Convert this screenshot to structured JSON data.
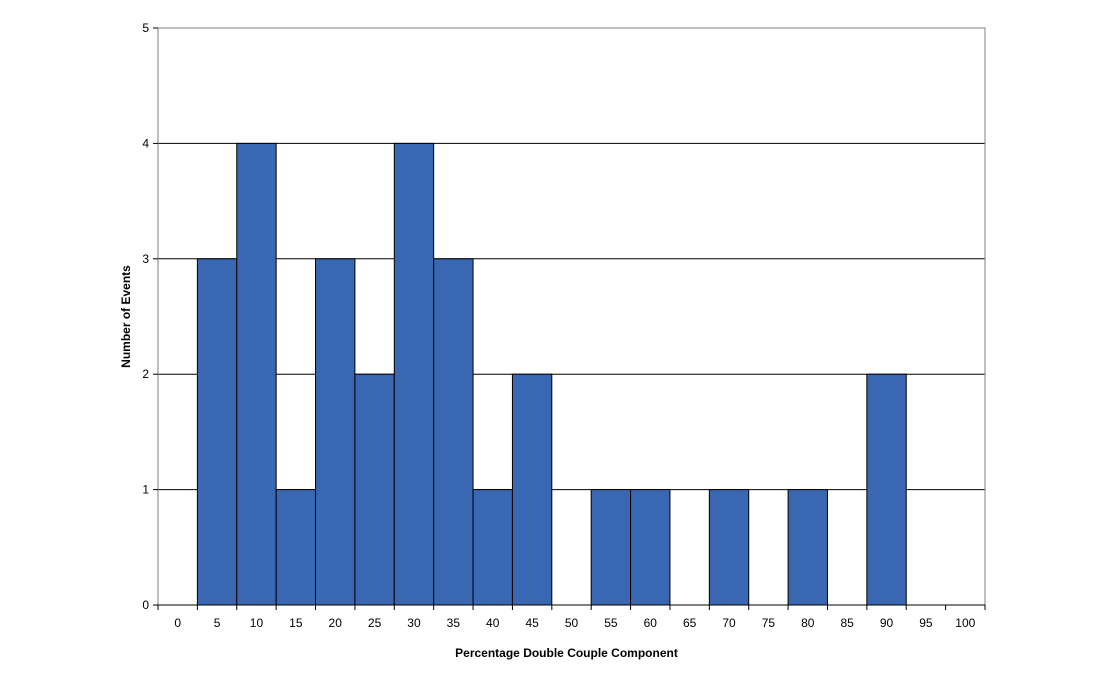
{
  "chart_data": {
    "type": "bar",
    "title": "",
    "xlabel": "Percentage Double Couple Component",
    "ylabel": "Number of Events",
    "categories": [
      "0",
      "5",
      "10",
      "15",
      "20",
      "25",
      "30",
      "35",
      "40",
      "45",
      "50",
      "55",
      "60",
      "65",
      "70",
      "75",
      "80",
      "85",
      "90",
      "95",
      "100"
    ],
    "values": [
      0,
      3,
      4,
      1,
      3,
      2,
      4,
      3,
      1,
      2,
      0,
      1,
      1,
      0,
      1,
      0,
      1,
      0,
      2,
      0,
      0
    ],
    "ylim": [
      0,
      5
    ],
    "yticks": [
      "0",
      "1",
      "2",
      "3",
      "4",
      "5"
    ],
    "grid": true,
    "legend": "none",
    "bar_color": "#3a67b2",
    "bar_edge_color": "#000000",
    "plot_border_color": "#808080"
  }
}
